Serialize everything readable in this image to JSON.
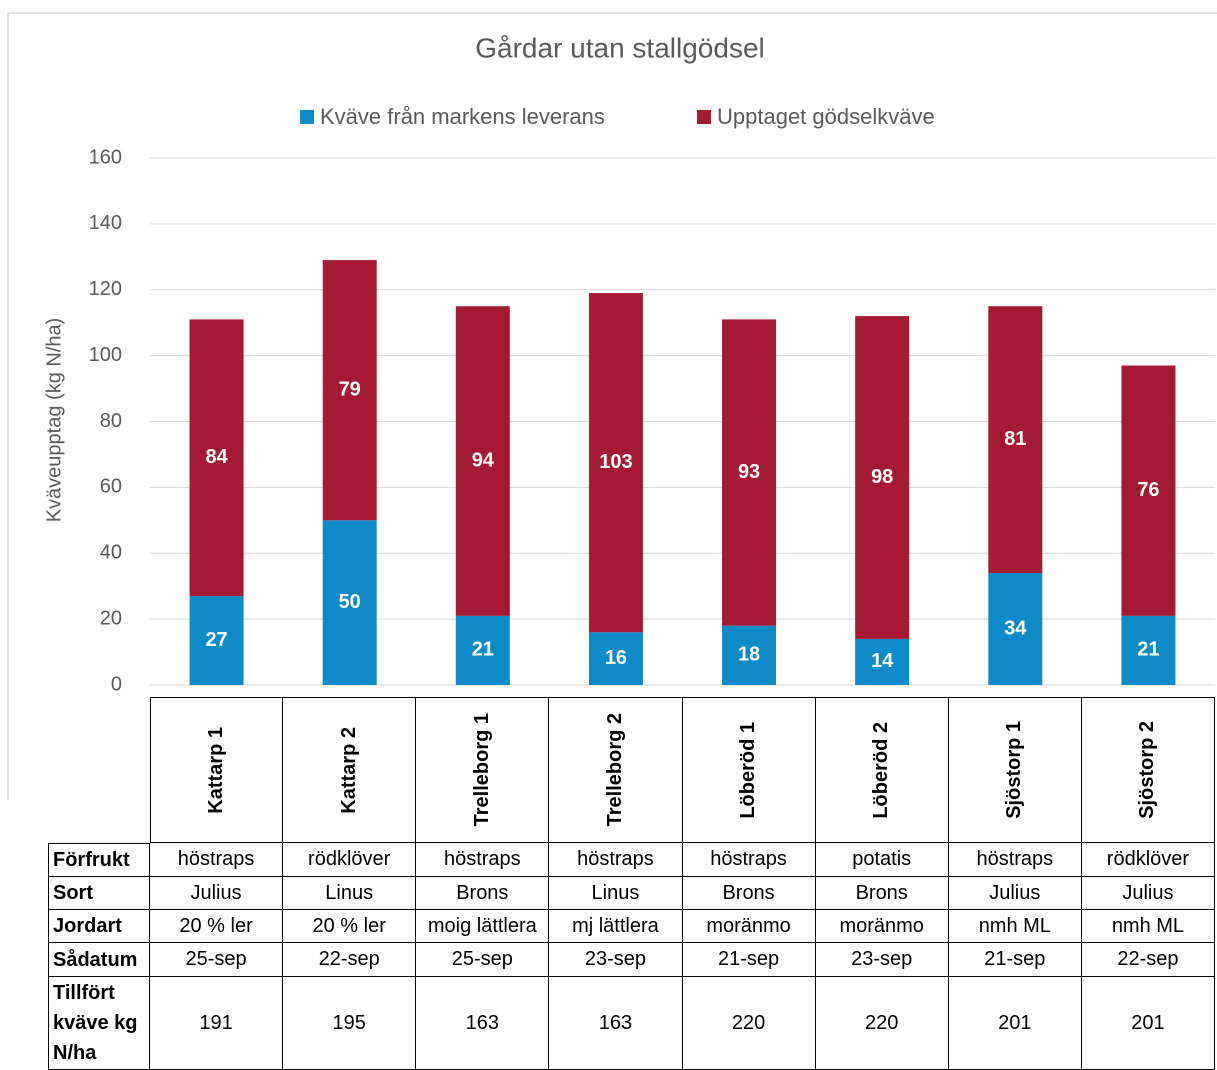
{
  "chart_data": {
    "type": "bar",
    "stacked": true,
    "title": "Gårdar utan stallgödsel",
    "ylabel": "Kväveupptag (kg N/ha)",
    "categories": [
      "Kattarp 1",
      "Kattarp 2",
      "Trelleborg 1",
      "Trelleborg 2",
      "Löberöd 1",
      "Löberöd 2",
      "Sjöstorp 1",
      "Sjöstorp 2"
    ],
    "series": [
      {
        "name": "Kväve från markens leverans",
        "color": "#0e8ac8",
        "values": [
          27,
          50,
          21,
          16,
          18,
          14,
          34,
          21
        ]
      },
      {
        "name": "Upptaget gödselkväve",
        "color": "#a31a32",
        "values": [
          84,
          79,
          94,
          103,
          93,
          98,
          81,
          76
        ]
      }
    ],
    "ylim": [
      0,
      160
    ],
    "yticks": [
      0,
      20,
      40,
      60,
      80,
      100,
      120,
      140,
      160
    ],
    "grid": true,
    "legend": "top"
  },
  "table": {
    "row_labels": [
      "Förfrukt",
      "Sort",
      "Jordart",
      "Sådatum",
      "Tillfört kväve kg N/ha"
    ],
    "rows": [
      [
        "höstraps",
        "rödklöver",
        "höstraps",
        "höstraps",
        "höstraps",
        "potatis",
        "höstraps",
        "rödklöver"
      ],
      [
        "Julius",
        "Linus",
        "Brons",
        "Linus",
        "Brons",
        "Brons",
        "Julius",
        "Julius"
      ],
      [
        "20 % ler",
        "20 % ler",
        "moig lättlera",
        "mj lättlera",
        "moränmo",
        "moränmo",
        "nmh ML",
        "nmh ML"
      ],
      [
        "25-sep",
        "22-sep",
        "25-sep",
        "23-sep",
        "21-sep",
        "23-sep",
        "21-sep",
        "22-sep"
      ],
      [
        191,
        195,
        163,
        163,
        220,
        220,
        201,
        201
      ]
    ]
  }
}
